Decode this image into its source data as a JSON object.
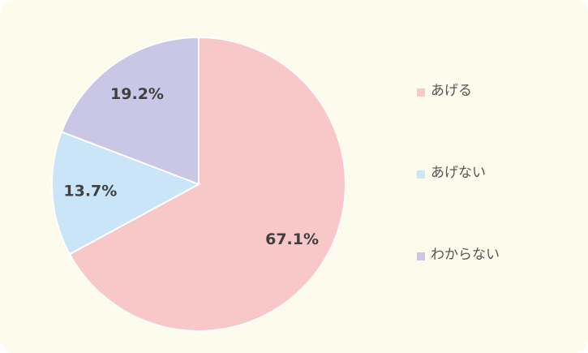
{
  "chart_data": {
    "type": "pie",
    "categories": [
      "あげる",
      "あげない",
      "わからない"
    ],
    "values": [
      67.1,
      13.7,
      19.2
    ],
    "value_labels": [
      "67.1%",
      "13.7%",
      "19.2%"
    ],
    "colors": [
      "#f8c8c9",
      "#c9e5f7",
      "#c9c7e5"
    ],
    "legend": "right"
  }
}
